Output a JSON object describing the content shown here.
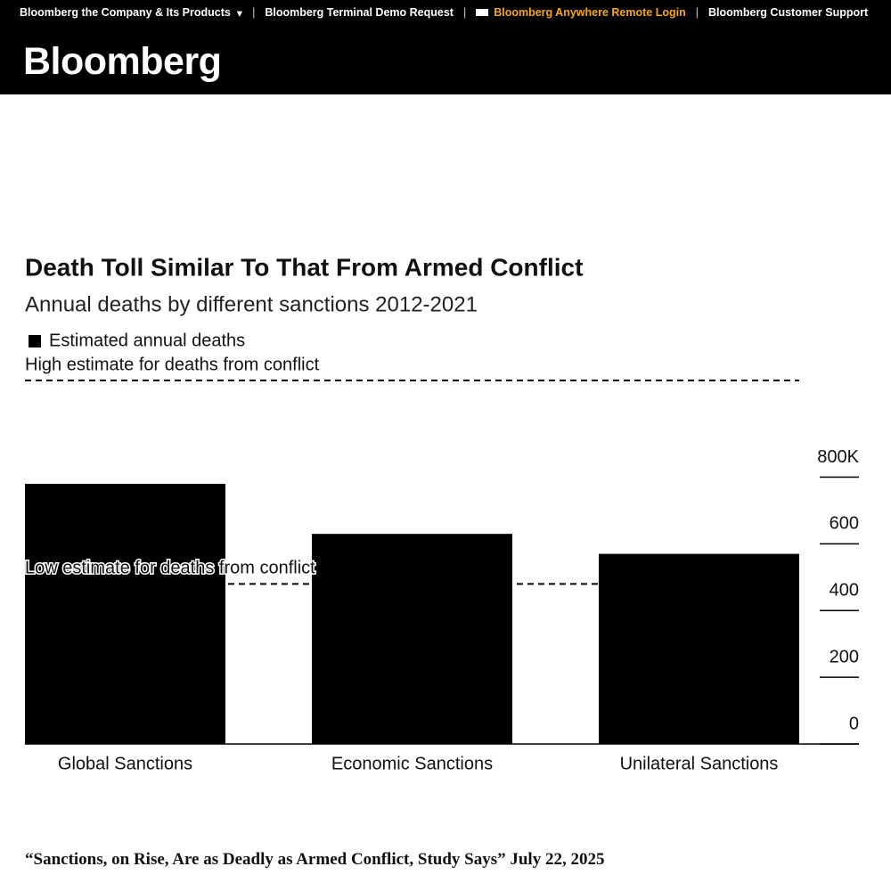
{
  "header": {
    "nav": [
      "Bloomberg the Company & Its Products",
      "Bloomberg Terminal Demo Request",
      "Bloomberg Anywhere Remote Login",
      "Bloomberg Customer Support"
    ],
    "logo": "Bloomberg"
  },
  "chart_data": {
    "type": "bar",
    "title": "Death Toll Similar To That From Armed Conflict",
    "subtitle": "Annual deaths by different sanctions 2012-2021",
    "categories": [
      "Global Sanctions",
      "Economic Sanctions",
      "Unilateral Sanctions"
    ],
    "series": [
      {
        "name": "Estimated annual deaths",
        "color": "#000000",
        "values": [
          780,
          630,
          570
        ]
      }
    ],
    "reference_lines": [
      {
        "label": "High estimate for deaths from conflict",
        "value": 1090
      },
      {
        "label": "Low estimate for deaths from conflict",
        "value": 480
      }
    ],
    "ylim": [
      0,
      1090
    ],
    "yticks": [
      0,
      200,
      400,
      600,
      {
        "value": 800,
        "label": "800K"
      }
    ]
  },
  "caption": "“Sanctions, on Rise, Are as Deadly as Armed Conflict, Study Says” July 22, 2025"
}
